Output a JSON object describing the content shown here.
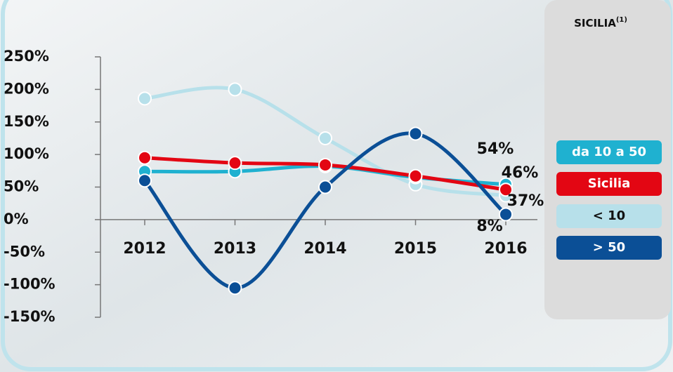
{
  "chart_data": {
    "type": "line",
    "categories": [
      "2012",
      "2013",
      "2014",
      "2015",
      "2016"
    ],
    "series": [
      {
        "name": "da 10 a 50",
        "color": "#1fb1d0",
        "values": [
          74,
          74,
          82,
          65,
          54
        ],
        "value_labels": [
          null,
          null,
          null,
          null,
          "54%"
        ]
      },
      {
        "name": "Sicilia",
        "color": "#e30613",
        "values": [
          95,
          87,
          84,
          67,
          46
        ],
        "value_labels": [
          null,
          null,
          null,
          null,
          "46%"
        ]
      },
      {
        "name": "< 10",
        "color": "#b7e0ea",
        "values": [
          186,
          200,
          125,
          54,
          37
        ],
        "value_labels": [
          null,
          null,
          null,
          null,
          "37%"
        ]
      },
      {
        "name": "> 50",
        "color": "#0b4f96",
        "values": [
          60,
          -105,
          50,
          132,
          8
        ],
        "value_labels": [
          null,
          null,
          null,
          null,
          "8%"
        ]
      }
    ],
    "legend_title": "SICILIA",
    "legend_note": "(1)",
    "ylim": [
      -150,
      250
    ],
    "yticks": [
      {
        "value": -150,
        "label": "-150%"
      },
      {
        "value": -100,
        "label": "-100%"
      },
      {
        "value": -50,
        "label": "-50%"
      },
      {
        "value": 0,
        "label": "0%"
      },
      {
        "value": 50,
        "label": "50%"
      },
      {
        "value": 100,
        "label": "100%"
      },
      {
        "value": 150,
        "label": "150%"
      },
      {
        "value": 200,
        "label": "200%"
      },
      {
        "value": 250,
        "label": "250%"
      }
    ],
    "legend": "right"
  }
}
